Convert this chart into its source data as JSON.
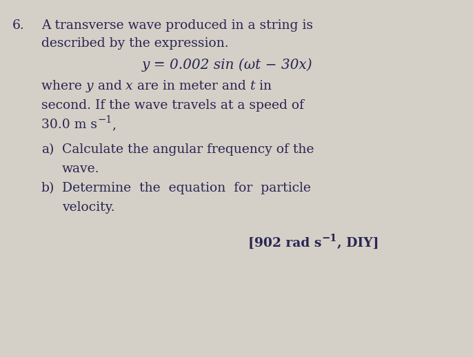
{
  "bg_color": "#d4d0c8",
  "text_color": "#2a2550",
  "question_number": "6.",
  "line1": "A transverse wave produced in a string is",
  "line2": "described by the expression.",
  "equation": "y = 0.002 sin (ωt − 30x)",
  "line4": "second. If the wave travels at a speed of",
  "line5_main": "30.0 m s",
  "line5_sup": "−1",
  "line5_comma": ",",
  "part_a_label": "a)",
  "part_a_text": "Calculate the angular frequency of the",
  "part_a_text2": "wave.",
  "part_b_label": "b)",
  "part_b_text": "Determine  the  equation  for  particle",
  "part_b_text2": "velocity.",
  "answer_main": "[902 rad s",
  "answer_sup": "−1",
  "answer_end": ", DIY]",
  "font_size_main": 13.5,
  "font_size_eq": 14.5,
  "font_size_answer": 13.5
}
